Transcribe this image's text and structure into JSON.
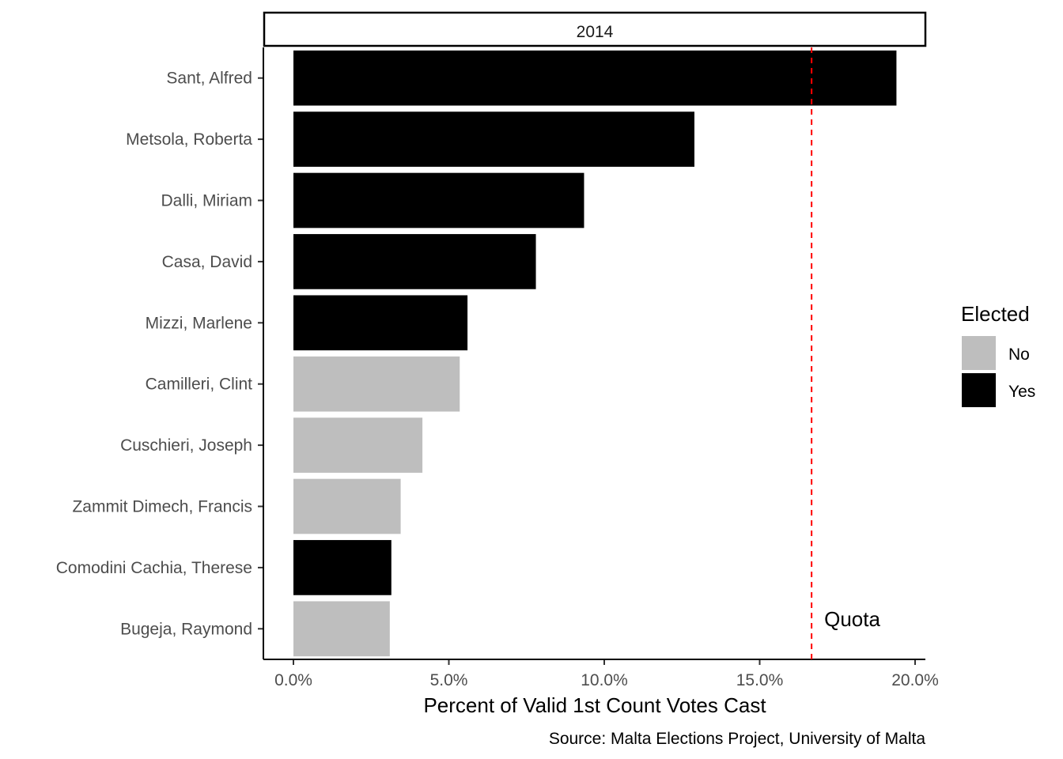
{
  "chart_data": {
    "type": "bar",
    "orientation": "horizontal",
    "facet": "2014",
    "categories": [
      "Sant, Alfred",
      "Metsola, Roberta",
      "Dalli, Miriam",
      "Casa, David",
      "Mizzi, Marlene",
      "Camilleri, Clint",
      "Cuschieri, Joseph",
      "Zammit Dimech, Francis",
      "Comodini Cachia, Therese",
      "Bugeja, Raymond"
    ],
    "values": [
      19.4,
      12.9,
      9.35,
      7.8,
      5.6,
      5.35,
      4.15,
      3.45,
      3.15,
      3.1
    ],
    "elected": [
      "Yes",
      "Yes",
      "Yes",
      "Yes",
      "Yes",
      "No",
      "No",
      "No",
      "Yes",
      "No"
    ],
    "xlabel": "Percent of Valid 1st Count Votes Cast",
    "ylabel": "",
    "xlim": [
      -1.0,
      20.3
    ],
    "xticks": [
      0,
      5,
      10,
      15,
      20
    ],
    "xtick_labels": [
      "0.0%",
      "5.0%",
      "10.0%",
      "15.0%",
      "20.0%"
    ],
    "quota": {
      "value": 16.67,
      "label": "Quota",
      "color": "#ff0000"
    },
    "legend": {
      "title": "Elected",
      "position": "right",
      "items": [
        {
          "label": "No",
          "color": "#bebebe"
        },
        {
          "label": "Yes",
          "color": "#000000"
        }
      ]
    },
    "caption": "Source: Malta Elections Project, University of Malta",
    "grid": false
  }
}
